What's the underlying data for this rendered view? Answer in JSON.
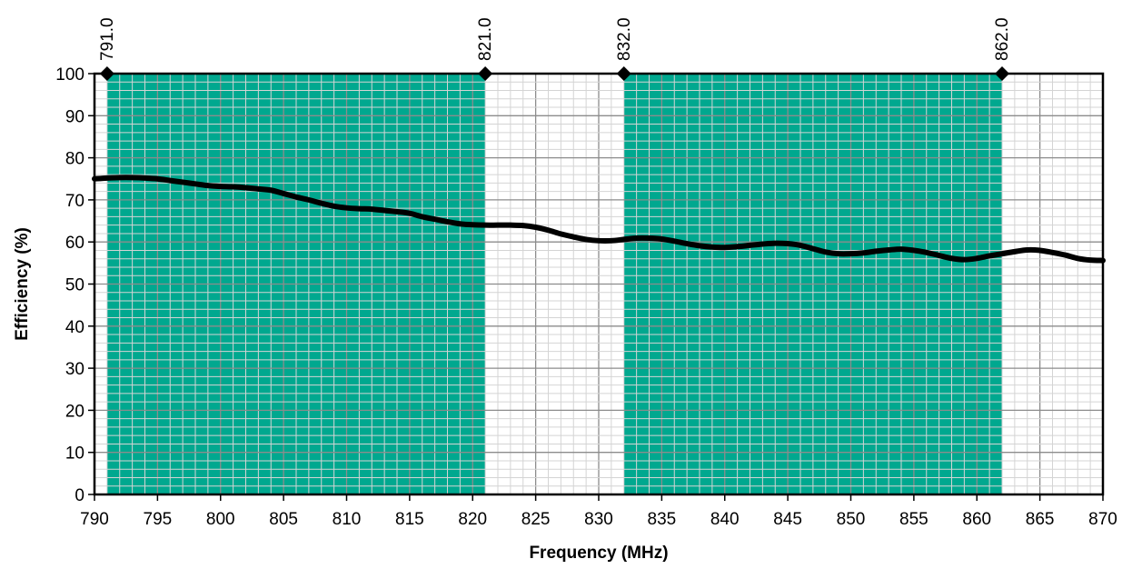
{
  "chart_data": {
    "type": "line",
    "title": "",
    "xlabel": "Frequency (MHz)",
    "ylabel": "Efficiency (%)",
    "xlim": [
      790,
      870
    ],
    "ylim": [
      0,
      100
    ],
    "x_ticks": [
      790,
      795,
      800,
      805,
      810,
      815,
      820,
      825,
      830,
      835,
      840,
      845,
      850,
      855,
      860,
      865,
      870
    ],
    "y_ticks": [
      0,
      10,
      20,
      30,
      40,
      50,
      60,
      70,
      80,
      90,
      100
    ],
    "grid": true,
    "bands": [
      {
        "start": 791.0,
        "end": 821.0,
        "color": "#00a88f"
      },
      {
        "start": 832.0,
        "end": 862.0,
        "color": "#00a88f"
      }
    ],
    "markers": [
      {
        "x": 791.0,
        "y": 100,
        "label": "791.0"
      },
      {
        "x": 821.0,
        "y": 100,
        "label": "821.0"
      },
      {
        "x": 832.0,
        "y": 100,
        "label": "832.0"
      },
      {
        "x": 862.0,
        "y": 100,
        "label": "862.0"
      }
    ],
    "series": [
      {
        "color": "#000000",
        "x": [
          790,
          791,
          792,
          793,
          794,
          795,
          796,
          797,
          798,
          799,
          800,
          801,
          802,
          803,
          804,
          805,
          806,
          807,
          808,
          809,
          810,
          811,
          812,
          813,
          814,
          815,
          816,
          817,
          818,
          819,
          820,
          821,
          822,
          823,
          824,
          825,
          826,
          827,
          828,
          829,
          830,
          831,
          832,
          833,
          834,
          835,
          836,
          837,
          838,
          839,
          840,
          841,
          842,
          843,
          844,
          845,
          846,
          847,
          848,
          849,
          850,
          851,
          852,
          853,
          854,
          855,
          856,
          857,
          858,
          859,
          860,
          861,
          862,
          863,
          864,
          865,
          866,
          867,
          868,
          869,
          870
        ],
        "values": [
          75.0,
          75.2,
          75.3,
          75.3,
          75.2,
          75.0,
          74.6,
          74.2,
          73.8,
          73.4,
          73.2,
          73.1,
          72.9,
          72.6,
          72.3,
          71.5,
          70.7,
          70.0,
          69.2,
          68.5,
          68.1,
          67.9,
          67.8,
          67.5,
          67.2,
          66.8,
          66.0,
          65.4,
          64.8,
          64.3,
          64.1,
          64.0,
          64.0,
          64.0,
          63.9,
          63.5,
          62.8,
          61.9,
          61.2,
          60.6,
          60.3,
          60.3,
          60.6,
          60.9,
          60.9,
          60.7,
          60.2,
          59.6,
          59.1,
          58.8,
          58.7,
          58.9,
          59.2,
          59.5,
          59.7,
          59.6,
          59.2,
          58.4,
          57.6,
          57.2,
          57.2,
          57.4,
          57.8,
          58.1,
          58.3,
          58.0,
          57.5,
          56.8,
          56.1,
          55.8,
          56.1,
          56.7,
          57.2,
          57.7,
          58.1,
          58.0,
          57.5,
          56.9,
          56.1,
          55.7,
          55.6
        ]
      }
    ]
  }
}
